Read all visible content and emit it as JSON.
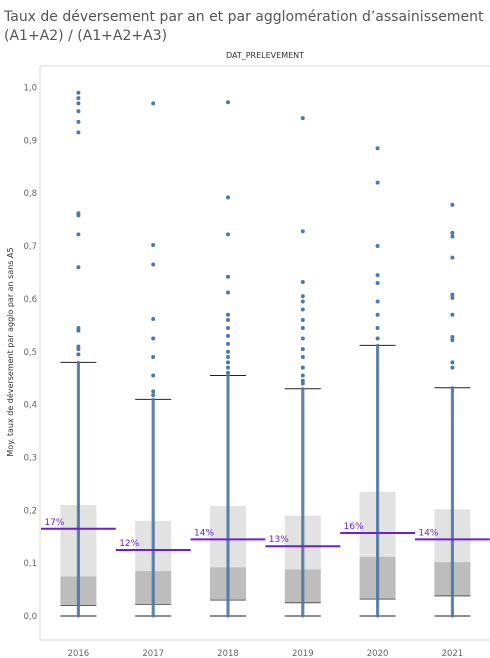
{
  "chart_data": {
    "type": "box",
    "title_line1": "Taux de déversement par an et par agglomération d’assainissement",
    "title_line2": "(A1+A2) / (A1+A2+A3)",
    "column_header": "DAT_PRELEVEMENT",
    "ylabel": "Moy. taux de déversement par agglo par an sans A5",
    "ylim": [
      0,
      1.0
    ],
    "y_ticks": [
      "0,0",
      "0,1",
      "0,2",
      "0,3",
      "0,4",
      "0,5",
      "0,6",
      "0,7",
      "0,8",
      "0,9",
      "1,0"
    ],
    "categories": [
      "2016",
      "2017",
      "2018",
      "2019",
      "2020",
      "2021"
    ],
    "colors": {
      "points": "#4e79a7",
      "box_upper": "#e2e2e2",
      "box_lower": "#bdbdbd",
      "mean_line": "#6a1fd6",
      "whisker": "#555555"
    },
    "series": [
      {
        "category": "2016",
        "mean": 0.165,
        "mean_label": "17%",
        "q1": 0.02,
        "median": 0.075,
        "q3": 0.21,
        "whisker_low": 0.0,
        "whisker_high": 0.48,
        "outliers": [
          0.99,
          0.98,
          0.97,
          0.955,
          0.935,
          0.915,
          0.762,
          0.758,
          0.722,
          0.66,
          0.545,
          0.54,
          0.51,
          0.505,
          0.495
        ]
      },
      {
        "category": "2017",
        "mean": 0.125,
        "mean_label": "12%",
        "q1": 0.022,
        "median": 0.085,
        "q3": 0.18,
        "whisker_low": 0.0,
        "whisker_high": 0.41,
        "outliers": [
          0.97,
          0.702,
          0.665,
          0.562,
          0.525,
          0.49,
          0.455,
          0.425,
          0.418
        ]
      },
      {
        "category": "2018",
        "mean": 0.145,
        "mean_label": "14%",
        "q1": 0.03,
        "median": 0.092,
        "q3": 0.208,
        "whisker_low": 0.0,
        "whisker_high": 0.455,
        "outliers": [
          0.972,
          0.792,
          0.722,
          0.642,
          0.612,
          0.57,
          0.56,
          0.545,
          0.53,
          0.515,
          0.5,
          0.49,
          0.48,
          0.47,
          0.46
        ]
      },
      {
        "category": "2019",
        "mean": 0.132,
        "mean_label": "13%",
        "q1": 0.025,
        "median": 0.088,
        "q3": 0.19,
        "whisker_low": 0.0,
        "whisker_high": 0.43,
        "outliers": [
          0.942,
          0.728,
          0.632,
          0.605,
          0.595,
          0.58,
          0.56,
          0.545,
          0.525,
          0.505,
          0.49,
          0.47,
          0.455,
          0.445,
          0.44
        ]
      },
      {
        "category": "2020",
        "mean": 0.157,
        "mean_label": "16%",
        "q1": 0.032,
        "median": 0.112,
        "q3": 0.235,
        "whisker_low": 0.0,
        "whisker_high": 0.512,
        "outliers": [
          0.885,
          0.82,
          0.7,
          0.645,
          0.63,
          0.595,
          0.57,
          0.545,
          0.525
        ]
      },
      {
        "category": "2021",
        "mean": 0.145,
        "mean_label": "14%",
        "q1": 0.038,
        "median": 0.102,
        "q3": 0.202,
        "whisker_low": 0.0,
        "whisker_high": 0.432,
        "outliers": [
          0.778,
          0.725,
          0.718,
          0.678,
          0.608,
          0.602,
          0.57,
          0.528,
          0.522,
          0.48,
          0.47
        ]
      }
    ]
  }
}
